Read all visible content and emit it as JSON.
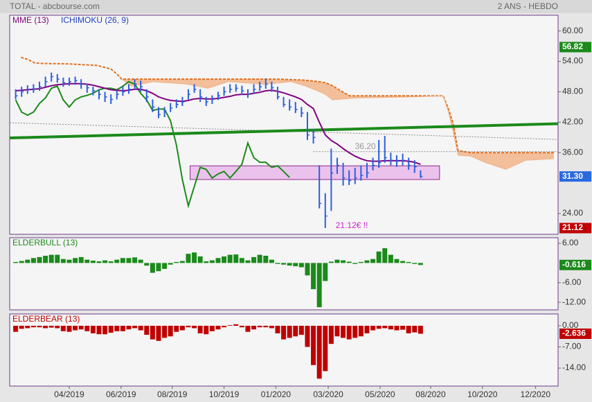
{
  "header": {
    "title": "TOTAL - abcbourse.com",
    "period": "2 ANS - HEBDO"
  },
  "chart_data": [
    {
      "type": "ohlc",
      "color": "#2a5fdf",
      "xlim": [
        0,
        92.1
      ],
      "ylim": [
        19.9,
        63.1
      ],
      "grid": false,
      "yticks": [
        {
          "value": 24,
          "label": "24.00"
        },
        {
          "value": 36,
          "label": "36.00"
        },
        {
          "value": 42,
          "label": "42.00"
        },
        {
          "value": 48,
          "label": "48.00"
        },
        {
          "value": 54,
          "label": "54.00"
        },
        {
          "value": 60,
          "label": "60.00"
        }
      ],
      "x": [
        1,
        2,
        3,
        4,
        5,
        6,
        7,
        8,
        9,
        10,
        11,
        12,
        13,
        14,
        15,
        16,
        17,
        18,
        19,
        20,
        21,
        22,
        23,
        24,
        25,
        26,
        27,
        28,
        29,
        30,
        31,
        32,
        33,
        34,
        35,
        36,
        37,
        38,
        39,
        40,
        41,
        42,
        43,
        44,
        45,
        46,
        47,
        48,
        49,
        50,
        51,
        52,
        53,
        54,
        55,
        56,
        57,
        58,
        59,
        60,
        61,
        62,
        63,
        64,
        65,
        66,
        67,
        68,
        69
      ],
      "high": [
        48.5,
        49,
        49.3,
        49.5,
        50,
        51,
        51.8,
        51.5,
        50.8,
        50.8,
        51,
        50.5,
        49.6,
        49,
        48.5,
        48,
        47.5,
        48.3,
        49,
        49.5,
        50.5,
        50.2,
        48.5,
        46.5,
        45,
        45,
        45.8,
        46.5,
        47,
        48.5,
        49.5,
        48.5,
        47,
        47.3,
        48,
        49,
        49.5,
        49.5,
        49.2,
        48.5,
        49.5,
        50,
        50.6,
        50,
        49,
        47,
        46.5,
        46,
        45,
        44,
        40.5,
        33.5,
        28,
        36.8,
        35,
        34,
        32.5,
        33,
        33.5,
        34,
        35,
        38.5,
        39.3,
        36,
        35.5,
        35.8,
        35,
        34.5,
        32.5
      ],
      "low": [
        46.5,
        47,
        47.6,
        47.8,
        48.2,
        49,
        50,
        49.8,
        49,
        49.2,
        49.4,
        48.6,
        47.8,
        47.3,
        46.5,
        46,
        45.6,
        46.5,
        47.2,
        47.6,
        48.5,
        48,
        46,
        44,
        42.8,
        43,
        44,
        44.8,
        45.2,
        46.5,
        47.8,
        46,
        45.2,
        45.6,
        46.4,
        47.2,
        47.8,
        48,
        47.4,
        46.8,
        47.6,
        48.2,
        48.6,
        48,
        46.5,
        45,
        44.3,
        43.8,
        43,
        38.5,
        37.8,
        25,
        21.12,
        24.5,
        31.8,
        29.5,
        29.6,
        29.8,
        30.5,
        31,
        32.5,
        33,
        34,
        33.5,
        33.2,
        33.5,
        32.6,
        32,
        31
      ],
      "close": [
        47.2,
        48,
        48.5,
        48.6,
        49,
        50,
        51,
        50.5,
        49.8,
        50,
        50.2,
        49.5,
        48.8,
        48.2,
        47.5,
        47,
        46.5,
        47.5,
        48,
        48.5,
        49.5,
        49,
        47,
        45,
        43.5,
        44,
        44.8,
        45.5,
        46,
        47.5,
        48.5,
        47,
        46,
        46.5,
        47.2,
        48,
        48.5,
        48.7,
        48.2,
        47.5,
        48.5,
        49,
        49.5,
        48.8,
        47,
        45.5,
        45,
        44.5,
        43.8,
        39.5,
        39,
        26,
        23.5,
        32,
        33.5,
        31,
        30.5,
        31,
        31.5,
        32,
        33.5,
        34,
        35,
        34.5,
        34.3,
        34.5,
        33.5,
        33.2,
        31.3
      ],
      "series": [
        {
          "name": "MME (13)",
          "color": "#800080",
          "x": [
            1,
            2,
            3,
            4,
            5,
            6,
            7,
            8,
            9,
            10,
            11,
            12,
            13,
            14,
            15,
            16,
            17,
            18,
            19,
            20,
            21,
            22,
            23,
            24,
            25,
            26,
            27,
            28,
            29,
            30,
            31,
            32,
            33,
            34,
            35,
            36,
            37,
            38,
            39,
            40,
            41,
            42,
            43,
            44,
            45,
            46,
            47,
            48,
            49,
            50,
            51,
            52,
            53,
            54,
            55,
            56,
            57,
            58,
            59,
            60,
            61,
            62,
            63,
            64,
            65,
            66,
            67,
            68,
            69
          ],
          "values": [
            48.2,
            48.3,
            48.4,
            48.5,
            48.6,
            48.9,
            49.2,
            49.4,
            49.5,
            49.6,
            49.6,
            49.6,
            49.5,
            49.3,
            49,
            48.7,
            48.4,
            48.3,
            48.2,
            48.3,
            48.5,
            48.5,
            48.2,
            47.7,
            47,
            46.6,
            46.3,
            46.2,
            46.1,
            46.3,
            46.6,
            46.7,
            46.6,
            46.6,
            46.7,
            46.9,
            47.1,
            47.4,
            47.5,
            47.5,
            47.7,
            47.9,
            48.2,
            48.3,
            48.1,
            47.8,
            47.4,
            47,
            46.5,
            45.5,
            44.7,
            42,
            39.5,
            38.4,
            37.7,
            36.8,
            36,
            35.3,
            34.8,
            34.4,
            34.3,
            34.3,
            34.4,
            34.4,
            34.4,
            34.4,
            34.3,
            34.1,
            33.7
          ]
        }
      ],
      "ichimoku": {
        "name": "ICHIMOKU (26, 9)",
        "color": "#e07020",
        "fill": "#f2b48a",
        "cloud": {
          "x": [
            1.9,
            3,
            4.2,
            5.3,
            10,
            14.7,
            17,
            18.1,
            18.8,
            20.5,
            24,
            29.8,
            33.3,
            36.7,
            42.6,
            44.9,
            47.2,
            49.5,
            51.9,
            53,
            54.2,
            55.3,
            57.1,
            58.8,
            68.1,
            72.8,
            73.7,
            74.5,
            75.3,
            77.4,
            79.8,
            83.3,
            86.7,
            91.4
          ],
          "span_a": [
            54.8,
            54.4,
            53.7,
            53.6,
            53.5,
            53.2,
            52.5,
            51.4,
            50.5,
            50.5,
            50.5,
            50.5,
            50.5,
            50.5,
            50.5,
            50.5,
            50.4,
            50.3,
            50,
            49.8,
            49.2,
            48.4,
            47.2,
            47.2,
            47.2,
            47.2,
            44.6,
            41.6,
            36.4,
            36,
            36,
            36,
            36,
            36
          ],
          "span_b": [
            null,
            null,
            null,
            null,
            null,
            null,
            null,
            null,
            50.5,
            49.1,
            50,
            49.5,
            48.7,
            50,
            49.5,
            49.7,
            50,
            49.2,
            48.1,
            47.5,
            46.4,
            46.5,
            46.7,
            46.8,
            47,
            47.2,
            44,
            40,
            35.5,
            35.3,
            34.1,
            32.7,
            34.5,
            34.8
          ]
        },
        "chikou": {
          "color": "#1a8a1a",
          "x": [
            1,
            2,
            3,
            4,
            5,
            6,
            7,
            8,
            9,
            10,
            11,
            12,
            13,
            14,
            15,
            16,
            17,
            18,
            19,
            20,
            21,
            22,
            23,
            24,
            25,
            26,
            27,
            28,
            29,
            30,
            31,
            32,
            33,
            34,
            35,
            36,
            37,
            38,
            39,
            40,
            41,
            42,
            43,
            44,
            45,
            46,
            47
          ],
          "values": [
            46.4,
            44,
            43.4,
            44,
            45.7,
            46.8,
            48.7,
            49.1,
            46.4,
            45,
            46.4,
            47,
            47.3,
            47.7,
            48.4,
            48.7,
            48.7,
            48.4,
            49.1,
            50,
            49.5,
            47.7,
            46.4,
            44.3,
            44.6,
            44.6,
            42.3,
            37.5,
            30.7,
            25.5,
            29.3,
            33.1,
            32.7,
            31,
            31.8,
            32.3,
            31,
            32.3,
            33.7,
            37.9,
            35,
            34.1,
            34.1,
            33.1,
            33.4,
            32.3,
            31.1
          ]
        }
      },
      "lines": [
        {
          "x": [
            0,
            92.1
          ],
          "values": [
            41.9,
            38.6
          ],
          "color": "#888888",
          "width": 1,
          "dash": "dotted"
        },
        {
          "x": [
            51,
            92.1
          ],
          "values": [
            36.2,
            36.2
          ],
          "color": "#888888",
          "width": 1,
          "dash": "dotted",
          "label": "36.20"
        },
        {
          "x": [
            0,
            92.1
          ],
          "values": [
            38.9,
            41.7
          ],
          "color": "#1a8a1a",
          "width": 4,
          "dash": "solid"
        }
      ],
      "zone": {
        "x": [
          30.3,
          72.2
        ],
        "values": [
          33.4,
          30.7
        ],
        "color": "#e9b5ea"
      },
      "low_note": "21.12€ !!",
      "price_labels": [
        {
          "value": 56.82,
          "color": "#1a8a1a"
        },
        {
          "value": 31.3,
          "label": "31.30",
          "color": "#2a6ae0"
        },
        {
          "value": 21.12,
          "color": "#c00000"
        }
      ]
    },
    {
      "type": "bar",
      "title": "ELDERBULL (13)",
      "color": "#1a8a1a",
      "xlim": [
        0,
        92.1
      ],
      "ylim": [
        -14.3,
        7.7
      ],
      "grid": false,
      "yticks": [
        {
          "value": 6,
          "label": "6.00"
        },
        {
          "value": -6,
          "label": "-6.00"
        },
        {
          "value": -12,
          "label": "-12.00"
        }
      ],
      "x": [
        1,
        2,
        3,
        4,
        5,
        6,
        7,
        8,
        9,
        10,
        11,
        12,
        13,
        14,
        15,
        16,
        17,
        18,
        19,
        20,
        21,
        22,
        23,
        24,
        25,
        26,
        27,
        28,
        29,
        30,
        31,
        32,
        33,
        34,
        35,
        36,
        37,
        38,
        39,
        40,
        41,
        42,
        43,
        44,
        45,
        46,
        47,
        48,
        49,
        50,
        51,
        52,
        53,
        54,
        55,
        56,
        57,
        58,
        59,
        60,
        61,
        62,
        63,
        64,
        65,
        66,
        67,
        68,
        69
      ],
      "values": [
        0.3,
        0.6,
        1,
        1.5,
        1.8,
        2.2,
        2.5,
        2.5,
        1.2,
        1,
        1.5,
        1.8,
        1,
        0.7,
        0.5,
        0.8,
        0.5,
        1,
        1.5,
        1.5,
        1.7,
        1,
        -0.8,
        -3,
        -2.5,
        -1.8,
        -0.5,
        0.3,
        0.6,
        2.8,
        3.2,
        2,
        0.5,
        0.8,
        1.5,
        2,
        2.5,
        2.6,
        1.5,
        0.8,
        1.8,
        2.5,
        2.2,
        1,
        -0.3,
        -0.5,
        -0.8,
        -1,
        -1.3,
        -3.8,
        -8,
        -13.5,
        -5.5,
        0.4,
        1,
        0.8,
        0.4,
        -0.3,
        0.3,
        0.8,
        1.2,
        3.5,
        4.5,
        2.5,
        1.2,
        0.6,
        0.3,
        -0.3,
        -0.616
      ],
      "price_labels": [
        {
          "value": -0.616,
          "color": "#1a8a1a"
        }
      ]
    },
    {
      "type": "bar",
      "title": "ELDERBEAR (13)",
      "color": "#c00000",
      "xlim": [
        0,
        92.1
      ],
      "ylim": [
        -19.95,
        3.9
      ],
      "grid": false,
      "yticks": [
        {
          "value": 0,
          "label": "0.00"
        },
        {
          "value": -7,
          "label": "-7.00"
        },
        {
          "value": -14,
          "label": "-14.00"
        }
      ],
      "xticks": [
        {
          "value": 10,
          "label": "04/2019"
        },
        {
          "value": 18.7,
          "label": "06/2019"
        },
        {
          "value": 27.3,
          "label": "08/2019"
        },
        {
          "value": 36,
          "label": "10/2019"
        },
        {
          "value": 44.7,
          "label": "01/2020"
        },
        {
          "value": 53.5,
          "label": "03/2020"
        },
        {
          "value": 62.2,
          "label": "05/2020"
        },
        {
          "value": 70.7,
          "label": "08/2020"
        },
        {
          "value": 79.4,
          "label": "10/2020"
        },
        {
          "value": 88.3,
          "label": "12/2020"
        }
      ],
      "x": [
        1,
        2,
        3,
        4,
        5,
        6,
        7,
        8,
        9,
        10,
        11,
        12,
        13,
        14,
        15,
        16,
        17,
        18,
        19,
        20,
        21,
        22,
        23,
        24,
        25,
        26,
        27,
        28,
        29,
        30,
        31,
        32,
        33,
        34,
        35,
        36,
        37,
        38,
        39,
        40,
        41,
        42,
        43,
        44,
        45,
        46,
        47,
        48,
        49,
        50,
        51,
        52,
        53,
        54,
        55,
        56,
        57,
        58,
        59,
        60,
        61,
        62,
        63,
        64,
        65,
        66,
        67,
        68,
        69
      ],
      "values": [
        -2,
        -1,
        -0.8,
        -0.5,
        -0.5,
        -0.8,
        -0.6,
        -0.8,
        -1.8,
        -2,
        -1.5,
        -1.2,
        -1.8,
        -2.5,
        -2.8,
        -2.8,
        -2.3,
        -1.8,
        -1.8,
        -1.2,
        -0.8,
        -1.5,
        -3,
        -4.5,
        -5,
        -4,
        -3.5,
        -2,
        -1.5,
        -0.5,
        -0.8,
        -2.5,
        -2.8,
        -1.8,
        -1.2,
        -0.5,
        0.2,
        0.5,
        -0.5,
        -2,
        -1.2,
        -0.5,
        -0.5,
        -0.8,
        -2.5,
        -4.5,
        -4,
        -3.5,
        -3,
        -7,
        -13,
        -17.5,
        -15,
        -6,
        -3.5,
        -4,
        -4.5,
        -4,
        -3.5,
        -2.5,
        -1.5,
        -1,
        -0.8,
        -1.2,
        -1.5,
        -1.3,
        -2.5,
        -2.2,
        -2.636
      ],
      "price_labels": [
        {
          "value": -2.636,
          "color": "#c00000"
        }
      ]
    }
  ]
}
